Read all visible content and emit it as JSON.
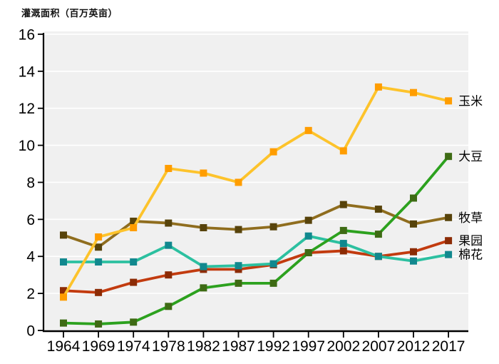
{
  "title": "灌溉面积（百万英亩）",
  "chart_data": {
    "type": "line",
    "title": "灌溉面积（百万英亩）",
    "xlabel": "",
    "ylabel": "灌溉面积（百万英亩）",
    "x_categories": [
      "1964",
      "1969",
      "1974",
      "1978",
      "1982",
      "1987",
      "1992",
      "1997",
      "2002",
      "2007",
      "2012",
      "2017"
    ],
    "ylim": [
      0,
      16
    ],
    "yticks": [
      0,
      2,
      4,
      6,
      8,
      10,
      12,
      14,
      16
    ],
    "grid": "horizontal-white-lines-on-light-gray-plot-area",
    "legend_position": "right-of-last-point",
    "plot_bg_color": "#F0F0F0",
    "gridline_color": "#FFFFFF",
    "axis_color": "#000000",
    "series": [
      {
        "id": "corn",
        "label": "玉米",
        "line_color": "#FDC32B",
        "marker_color": "#FF9D00",
        "values": [
          1.8,
          5.05,
          5.55,
          8.75,
          8.5,
          8.0,
          9.65,
          10.8,
          9.7,
          13.15,
          12.85,
          12.4
        ]
      },
      {
        "id": "soybean",
        "label": "大豆",
        "line_color": "#2CA11E",
        "marker_color": "#3E6B14",
        "values": [
          0.4,
          0.35,
          0.45,
          1.3,
          2.3,
          2.55,
          2.55,
          4.2,
          5.4,
          5.2,
          7.15,
          9.4
        ]
      },
      {
        "id": "pasture",
        "label": "牧草",
        "line_color": "#8F6D1E",
        "marker_color": "#57430B",
        "values": [
          5.15,
          4.5,
          5.9,
          5.8,
          5.55,
          5.45,
          5.6,
          5.95,
          6.8,
          6.55,
          5.75,
          6.1
        ]
      },
      {
        "id": "orchard",
        "label": "果园",
        "line_color": "#C23B0F",
        "marker_color": "#8C2B05",
        "values": [
          2.15,
          2.05,
          2.6,
          3.0,
          3.3,
          3.3,
          3.55,
          4.2,
          4.3,
          4.0,
          4.25,
          4.85
        ]
      },
      {
        "id": "cotton",
        "label": "棉花",
        "line_color": "#2CC0A0",
        "marker_color": "#11888E",
        "values": [
          3.7,
          3.7,
          3.7,
          4.6,
          3.45,
          3.5,
          3.6,
          5.1,
          4.7,
          4.0,
          3.75,
          4.1
        ]
      }
    ],
    "draw_order": [
      "orchard",
      "cotton",
      "pasture",
      "corn",
      "soybean"
    ]
  }
}
